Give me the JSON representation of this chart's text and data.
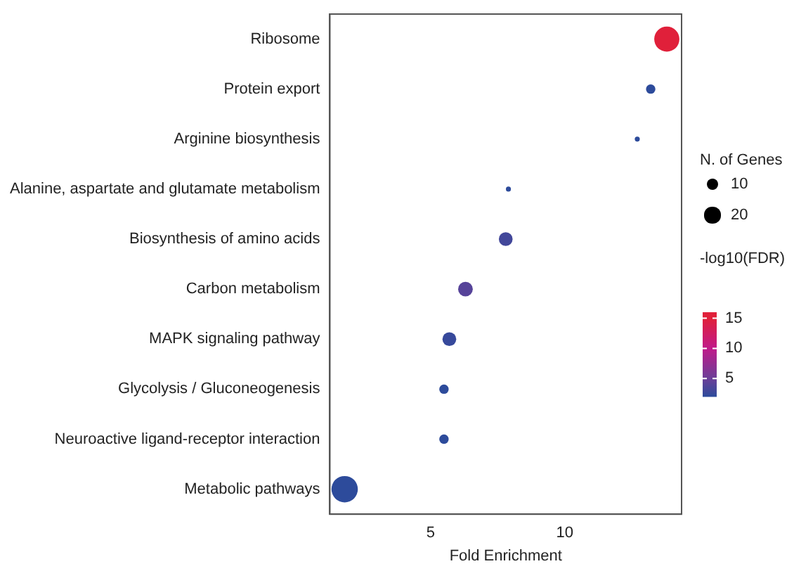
{
  "chart_data": {
    "type": "bubble",
    "xlabel": "Fold Enrichment",
    "legend_title": "N. of Genes",
    "clabel": "-log10(FDR)",
    "categories": [
      "Ribosome",
      "Protein export",
      "Arginine biosynthesis",
      "Alanine, aspartate and glutamate metabolism",
      "Biosynthesis of amino acids",
      "Carbon metabolism",
      "MAPK signaling pathway",
      "Glycolysis / Gluconeogenesis",
      "Neuroactive ligand-receptor interaction",
      "Metabolic pathways"
    ],
    "values": [
      13.8,
      13.2,
      12.7,
      7.9,
      7.8,
      6.3,
      5.7,
      5.5,
      5.5,
      1.8
    ],
    "sizes": [
      50,
      7,
      2,
      2,
      15,
      17,
      15,
      7,
      7,
      55
    ],
    "size_legend": [
      10,
      20
    ],
    "cvalues": [
      16,
      2,
      2,
      2,
      3,
      4,
      2.5,
      2,
      2,
      2
    ],
    "cticks": [
      5,
      10,
      15
    ],
    "clim": [
      2,
      16
    ],
    "orientation": "horizontal",
    "xlim": [
      1.25,
      14.35
    ],
    "xticks": [
      5,
      10
    ],
    "grid": false
  }
}
